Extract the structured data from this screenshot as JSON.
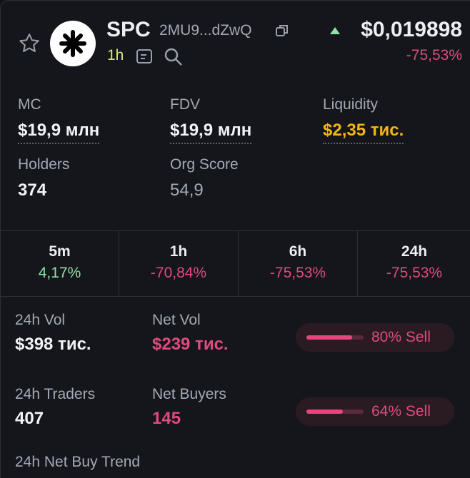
{
  "header": {
    "name": "SPC",
    "address": "2MU9...dZwQ",
    "age": "1h",
    "price": "$0,019898",
    "change": "-75,53%"
  },
  "stats": [
    {
      "label": "MC",
      "value": "$19,9 млн"
    },
    {
      "label": "FDV",
      "value": "$19,9 млн"
    },
    {
      "label": "Liquidity",
      "value": "$2,35 тис."
    },
    {
      "label": "Holders",
      "value": "374"
    },
    {
      "label": "Org Score",
      "value": "54,9"
    }
  ],
  "timeframes": [
    {
      "label": "5m",
      "change": "4,17%"
    },
    {
      "label": "1h",
      "change": "-70,84%"
    },
    {
      "label": "6h",
      "change": "-75,53%"
    },
    {
      "label": "24h",
      "change": "-75,53%"
    }
  ],
  "metrics": [
    {
      "label": "24h Vol",
      "value": "$398 тис.",
      "net_label": "Net Vol",
      "net_value": "$239 тис.",
      "sell": {
        "value": 80,
        "label": "80% Sell"
      }
    },
    {
      "label": "24h Traders",
      "value": "407",
      "net_label": "Net Buyers",
      "net_value": "145",
      "sell": {
        "value": 64,
        "label": "64% Sell"
      }
    }
  ],
  "footer": {
    "label": "24h Net Buy Trend"
  }
}
